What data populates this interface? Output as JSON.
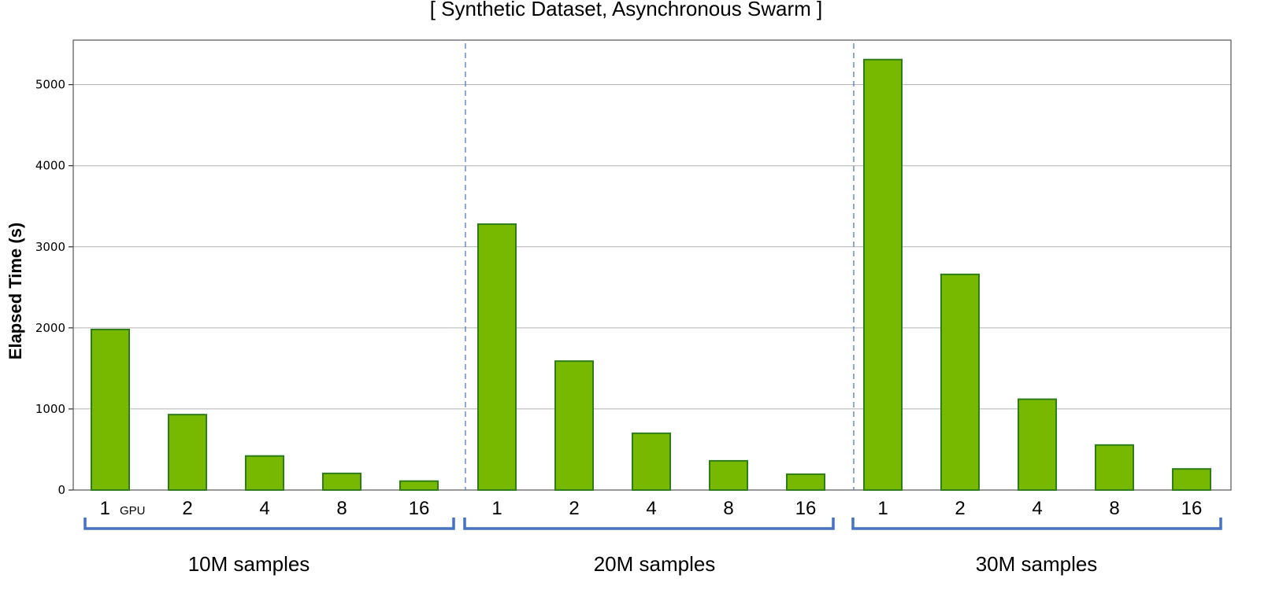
{
  "chart_data": {
    "type": "bar",
    "title": "[ Synthetic Dataset, Asynchronous Swarm ]",
    "xlabel": "",
    "ylabel": "Elapsed Time (s)",
    "ylim": [
      0,
      5550
    ],
    "yticks": [
      0,
      1000,
      2000,
      3000,
      4000,
      5000
    ],
    "grid": "horizontal",
    "bar_color": "#76b900",
    "bar_edge_color": "#2e7d1a",
    "bracket_color": "#4472c4",
    "divider_color": "#4472c4",
    "first_tick_unit": "GPU",
    "groups": [
      {
        "label": "10M samples",
        "categories": [
          "1",
          "2",
          "4",
          "8",
          "16"
        ],
        "values": [
          1980,
          930,
          420,
          205,
          110
        ]
      },
      {
        "label": "20M samples",
        "categories": [
          "1",
          "2",
          "4",
          "8",
          "16"
        ],
        "values": [
          3280,
          1590,
          700,
          360,
          195
        ]
      },
      {
        "label": "30M samples",
        "categories": [
          "1",
          "2",
          "4",
          "8",
          "16"
        ],
        "values": [
          5310,
          2660,
          1120,
          555,
          260
        ]
      }
    ]
  }
}
